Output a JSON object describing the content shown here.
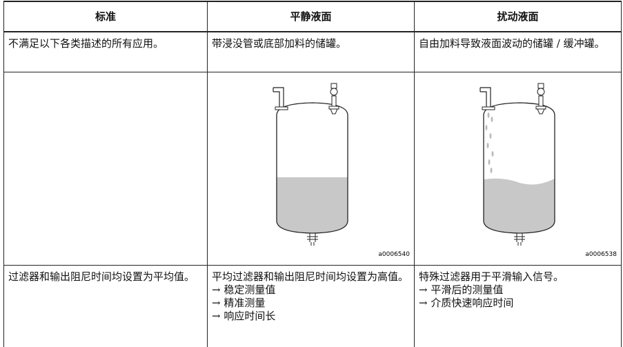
{
  "table": {
    "header": [
      "标准",
      "平静液面",
      "扰动液面"
    ],
    "description_row": [
      "不满足以下各类描述的所有应用。",
      "带浸没管或底部加料的储罐。",
      "自由加料导致液面波动的储罐 / 缓冲罐。"
    ],
    "figure_row": [
      {
        "caption": "a0006540"
      },
      {
        "caption": "a0006538"
      }
    ],
    "settings_row": [
      {
        "text": "过滤器和输出阻尼时间均设置为平均值。"
      },
      {
        "text": "平均过滤器和输出阻尼时间均设置为高值。",
        "effects": [
          "→ 稳定测量值",
          "→ 精准测量",
          "→ 响应时间长"
        ]
      },
      {
        "text": "特殊过滤器用于平滑输入信号。",
        "effects": [
          "→ 平滑后的测量值",
          "→ 介质快速响应时间"
        ]
      }
    ]
  }
}
